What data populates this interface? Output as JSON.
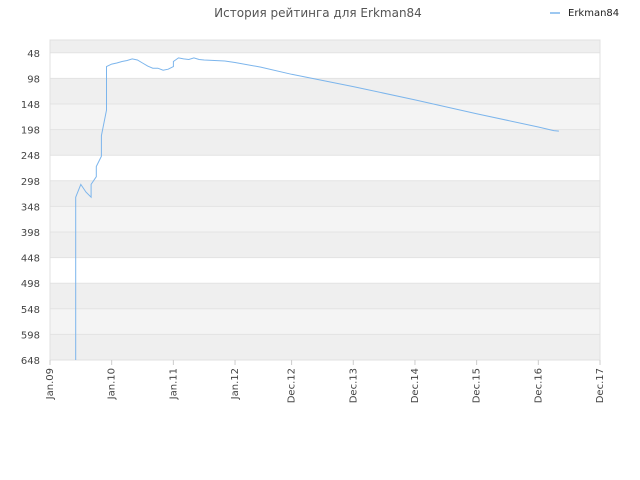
{
  "chart_data": {
    "type": "line",
    "title": "История рейтинга для Erkman84",
    "xlabel": "",
    "ylabel": "",
    "legend": "top-right",
    "grid": true,
    "ylim": [
      648,
      23
    ],
    "y_inverted": true,
    "y_ticks": [
      48,
      98,
      148,
      198,
      248,
      298,
      348,
      398,
      448,
      498,
      548,
      598,
      648
    ],
    "x_ticks": [
      "Jan.09",
      "Jan.10",
      "Jan.11",
      "Jan.12",
      "Dec.12",
      "Dec.13",
      "Dec.14",
      "Dec.15",
      "Dec.16",
      "Dec.17"
    ],
    "x_tick_dates": [
      "2009-01",
      "2010-01",
      "2011-01",
      "2012-01",
      "2012-12",
      "2013-12",
      "2014-12",
      "2015-12",
      "2016-12",
      "2017-12"
    ],
    "series": [
      {
        "name": "Erkman84",
        "color": "#7cb5ec",
        "points": [
          [
            "2009-06",
            648
          ],
          [
            "2009-06",
            460
          ],
          [
            "2009-06",
            350
          ],
          [
            "2009-06",
            330
          ],
          [
            "2009-07",
            305
          ],
          [
            "2009-08",
            320
          ],
          [
            "2009-09",
            330
          ],
          [
            "2009-09",
            305
          ],
          [
            "2009-10",
            290
          ],
          [
            "2009-10",
            270
          ],
          [
            "2009-11",
            250
          ],
          [
            "2009-11",
            210
          ],
          [
            "2009-12",
            160
          ],
          [
            "2009-12",
            100
          ],
          [
            "2009-12",
            75
          ],
          [
            "2010-01",
            70
          ],
          [
            "2010-02",
            68
          ],
          [
            "2010-03",
            65
          ],
          [
            "2010-04",
            63
          ],
          [
            "2010-05",
            60
          ],
          [
            "2010-06",
            62
          ],
          [
            "2010-07",
            68
          ],
          [
            "2010-08",
            74
          ],
          [
            "2010-09",
            78
          ],
          [
            "2010-10",
            78
          ],
          [
            "2010-11",
            82
          ],
          [
            "2010-12",
            80
          ],
          [
            "2011-01",
            75
          ],
          [
            "2011-01",
            65
          ],
          [
            "2011-02",
            58
          ],
          [
            "2011-03",
            60
          ],
          [
            "2011-04",
            61
          ],
          [
            "2011-05",
            58
          ],
          [
            "2011-06",
            61
          ],
          [
            "2011-07",
            62
          ],
          [
            "2011-09",
            63
          ],
          [
            "2011-11",
            64
          ],
          [
            "2012-01",
            67
          ],
          [
            "2012-06",
            76
          ],
          [
            "2012-12",
            90
          ],
          [
            "2013-12",
            114
          ],
          [
            "2014-12",
            140
          ],
          [
            "2015-12",
            167
          ],
          [
            "2016-12",
            193
          ],
          [
            "2017-03",
            200
          ],
          [
            "2017-04",
            201
          ]
        ]
      }
    ]
  }
}
